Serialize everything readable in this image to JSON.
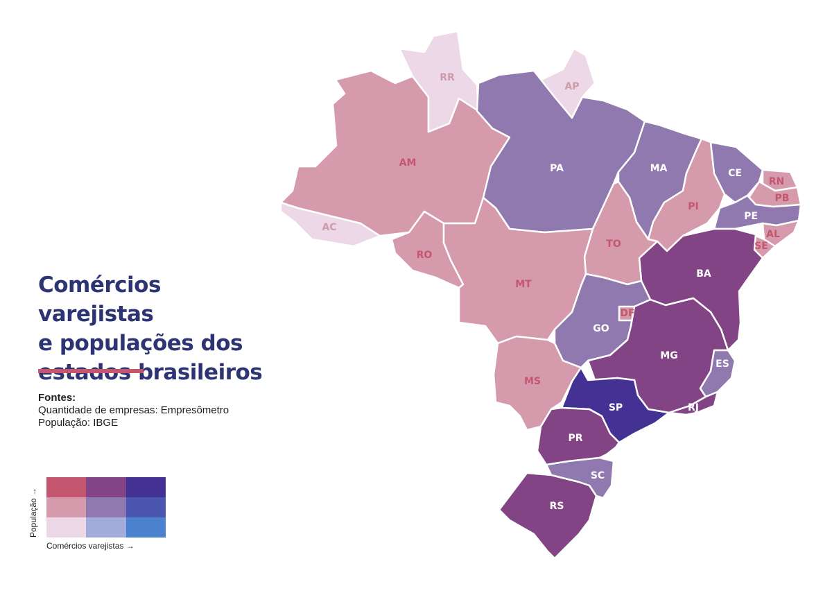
{
  "title": {
    "line1": "Comércios varejistas",
    "line2": "e populações dos",
    "line3": "estados brasileiros"
  },
  "sources": {
    "heading": "Fontes:",
    "line1": "Quantidade de empresas: Empresômetro",
    "line2": "População: IBGE"
  },
  "legend": {
    "y_label": "População →",
    "x_label": "Comércios varejistas →",
    "grid": [
      [
        "#c4576f",
        "#824484",
        "#443194"
      ],
      [
        "#d59aab",
        "#8f79ae",
        "#4b56b1"
      ],
      [
        "#ecd8e6",
        "#a1acdb",
        "#4b82cf"
      ]
    ]
  },
  "colors": {
    "title": "#2d3473",
    "rule": "#c4576f",
    "label_light": "#ffffff",
    "label_pink": "#c4576f",
    "label_faint": "#d09aaa"
  },
  "states": [
    {
      "code": "AC",
      "pop": 0,
      "com": 0
    },
    {
      "code": "AM",
      "pop": 1,
      "com": 0
    },
    {
      "code": "RR",
      "pop": 0,
      "com": 0
    },
    {
      "code": "AP",
      "pop": 0,
      "com": 0
    },
    {
      "code": "PA",
      "pop": 1,
      "com": 1
    },
    {
      "code": "MA",
      "pop": 1,
      "com": 1
    },
    {
      "code": "PI",
      "pop": 1,
      "com": 0
    },
    {
      "code": "CE",
      "pop": 1,
      "com": 1
    },
    {
      "code": "RN",
      "pop": 1,
      "com": 0
    },
    {
      "code": "PB",
      "pop": 1,
      "com": 0
    },
    {
      "code": "PE",
      "pop": 1,
      "com": 1
    },
    {
      "code": "AL",
      "pop": 1,
      "com": 0
    },
    {
      "code": "SE",
      "pop": 1,
      "com": 0
    },
    {
      "code": "BA",
      "pop": 2,
      "com": 1
    },
    {
      "code": "TO",
      "pop": 1,
      "com": 0
    },
    {
      "code": "RO",
      "pop": 1,
      "com": 0
    },
    {
      "code": "MT",
      "pop": 1,
      "com": 0
    },
    {
      "code": "GO",
      "pop": 1,
      "com": 1
    },
    {
      "code": "DF",
      "pop": 1,
      "com": 0
    },
    {
      "code": "MS",
      "pop": 1,
      "com": 0
    },
    {
      "code": "MG",
      "pop": 2,
      "com": 1
    },
    {
      "code": "ES",
      "pop": 1,
      "com": 1
    },
    {
      "code": "RJ",
      "pop": 2,
      "com": 1
    },
    {
      "code": "SP",
      "pop": 2,
      "com": 2
    },
    {
      "code": "PR",
      "pop": 2,
      "com": 1
    },
    {
      "code": "SC",
      "pop": 1,
      "com": 1
    },
    {
      "code": "RS",
      "pop": 2,
      "com": 1
    }
  ]
}
